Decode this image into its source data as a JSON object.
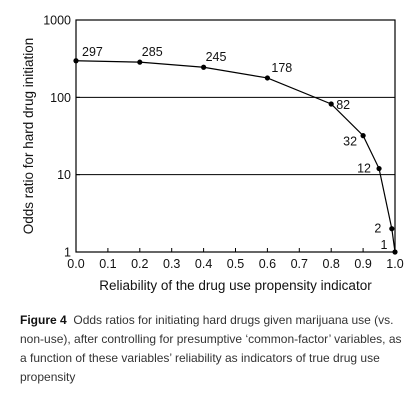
{
  "chart_data": {
    "type": "line",
    "xlabel": "Reliability of the drug use propensity indicator",
    "ylabel": "Odds ratio for hard drug initiation",
    "xlim": [
      0.0,
      1.0
    ],
    "ylim": [
      1,
      1000
    ],
    "yscale": "log",
    "xticks": [
      "0.0",
      "0.1",
      "0.2",
      "0.3",
      "0.4",
      "0.5",
      "0.6",
      "0.7",
      "0.8",
      "0.9",
      "1.0"
    ],
    "yticks": [
      "1",
      "10",
      "100",
      "1000"
    ],
    "grid": "horizontal at 10 and 100",
    "line_color": "#000000",
    "points": [
      {
        "x": 0.0,
        "y": 297,
        "label": "297"
      },
      {
        "x": 0.2,
        "y": 285,
        "label": "285"
      },
      {
        "x": 0.4,
        "y": 245,
        "label": "245"
      },
      {
        "x": 0.6,
        "y": 178,
        "label": "178"
      },
      {
        "x": 0.8,
        "y": 82,
        "label": "82"
      },
      {
        "x": 0.9,
        "y": 32,
        "label": "32"
      },
      {
        "x": 0.95,
        "y": 12,
        "label": "12"
      },
      {
        "x": 0.99,
        "y": 2,
        "label": "2"
      },
      {
        "x": 1.0,
        "y": 1,
        "label": "1"
      }
    ]
  },
  "caption": {
    "figure_label": "Figure 4",
    "text": "Odds ratios for initiating hard drugs given marijuana use (vs. non-use), after controlling for presumptive ‘common-factor’ variables, as a function of these variables’ reliability as indicators of true drug use propensity"
  }
}
